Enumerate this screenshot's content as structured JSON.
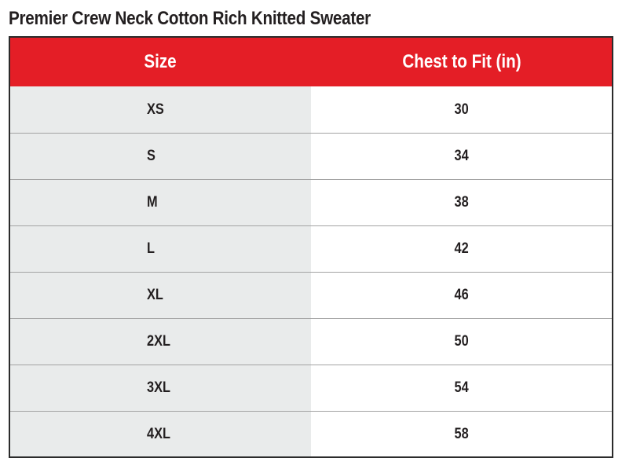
{
  "title": "Premier Crew Neck Cotton Rich Knitted Sweater",
  "colors": {
    "header_background": "#e41e26",
    "header_text": "#ffffff",
    "size_column_background": "#e9ebeb",
    "body_background": "#ffffff",
    "border": "#2b2b2b",
    "row_divider": "#a3a3a3",
    "text": "#231f20"
  },
  "table": {
    "headers": {
      "size": "Size",
      "chest": "Chest to Fit (in)"
    },
    "rows": [
      {
        "size": "XS",
        "chest": "30"
      },
      {
        "size": "S",
        "chest": "34"
      },
      {
        "size": "M",
        "chest": "38"
      },
      {
        "size": "L",
        "chest": "42"
      },
      {
        "size": "XL",
        "chest": "46"
      },
      {
        "size": "2XL",
        "chest": "50"
      },
      {
        "size": "3XL",
        "chest": "54"
      },
      {
        "size": "4XL",
        "chest": "58"
      }
    ]
  }
}
